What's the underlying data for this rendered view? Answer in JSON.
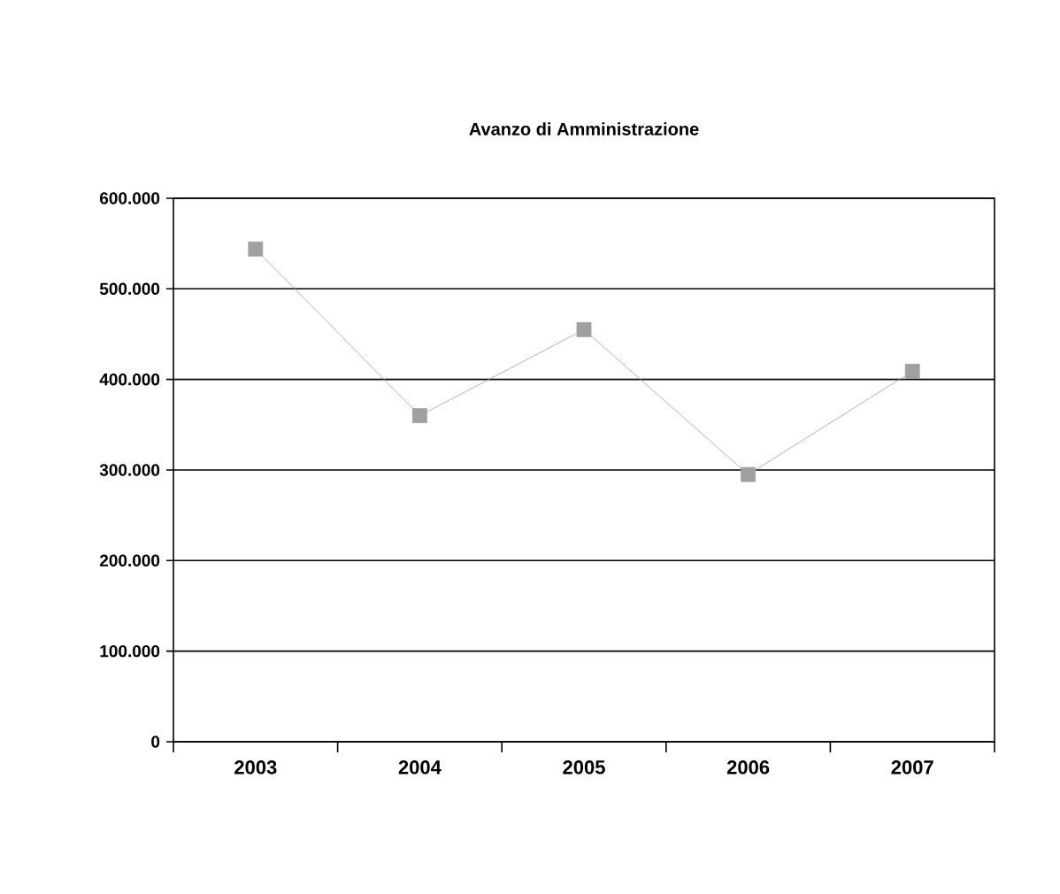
{
  "chart_data": {
    "type": "line",
    "title": "Avanzo di Amministrazione",
    "categories": [
      "2003",
      "2004",
      "2005",
      "2006",
      "2007"
    ],
    "series": [
      {
        "color": "#a0a0a0",
        "values": [
          544000,
          360000,
          455000,
          295000,
          409000
        ]
      }
    ],
    "ylim": [
      0,
      600000
    ],
    "yticks": [
      {
        "value": 0,
        "label": "0"
      },
      {
        "value": 100000,
        "label": "100.000"
      },
      {
        "value": 200000,
        "label": "200.000"
      },
      {
        "value": 300000,
        "label": "300.000"
      },
      {
        "value": 400000,
        "label": "400.000"
      },
      {
        "value": 500000,
        "label": "500.000"
      },
      {
        "value": 600000,
        "label": "600.000"
      }
    ],
    "grid": "y",
    "marker": "square",
    "line_style": "solid"
  }
}
